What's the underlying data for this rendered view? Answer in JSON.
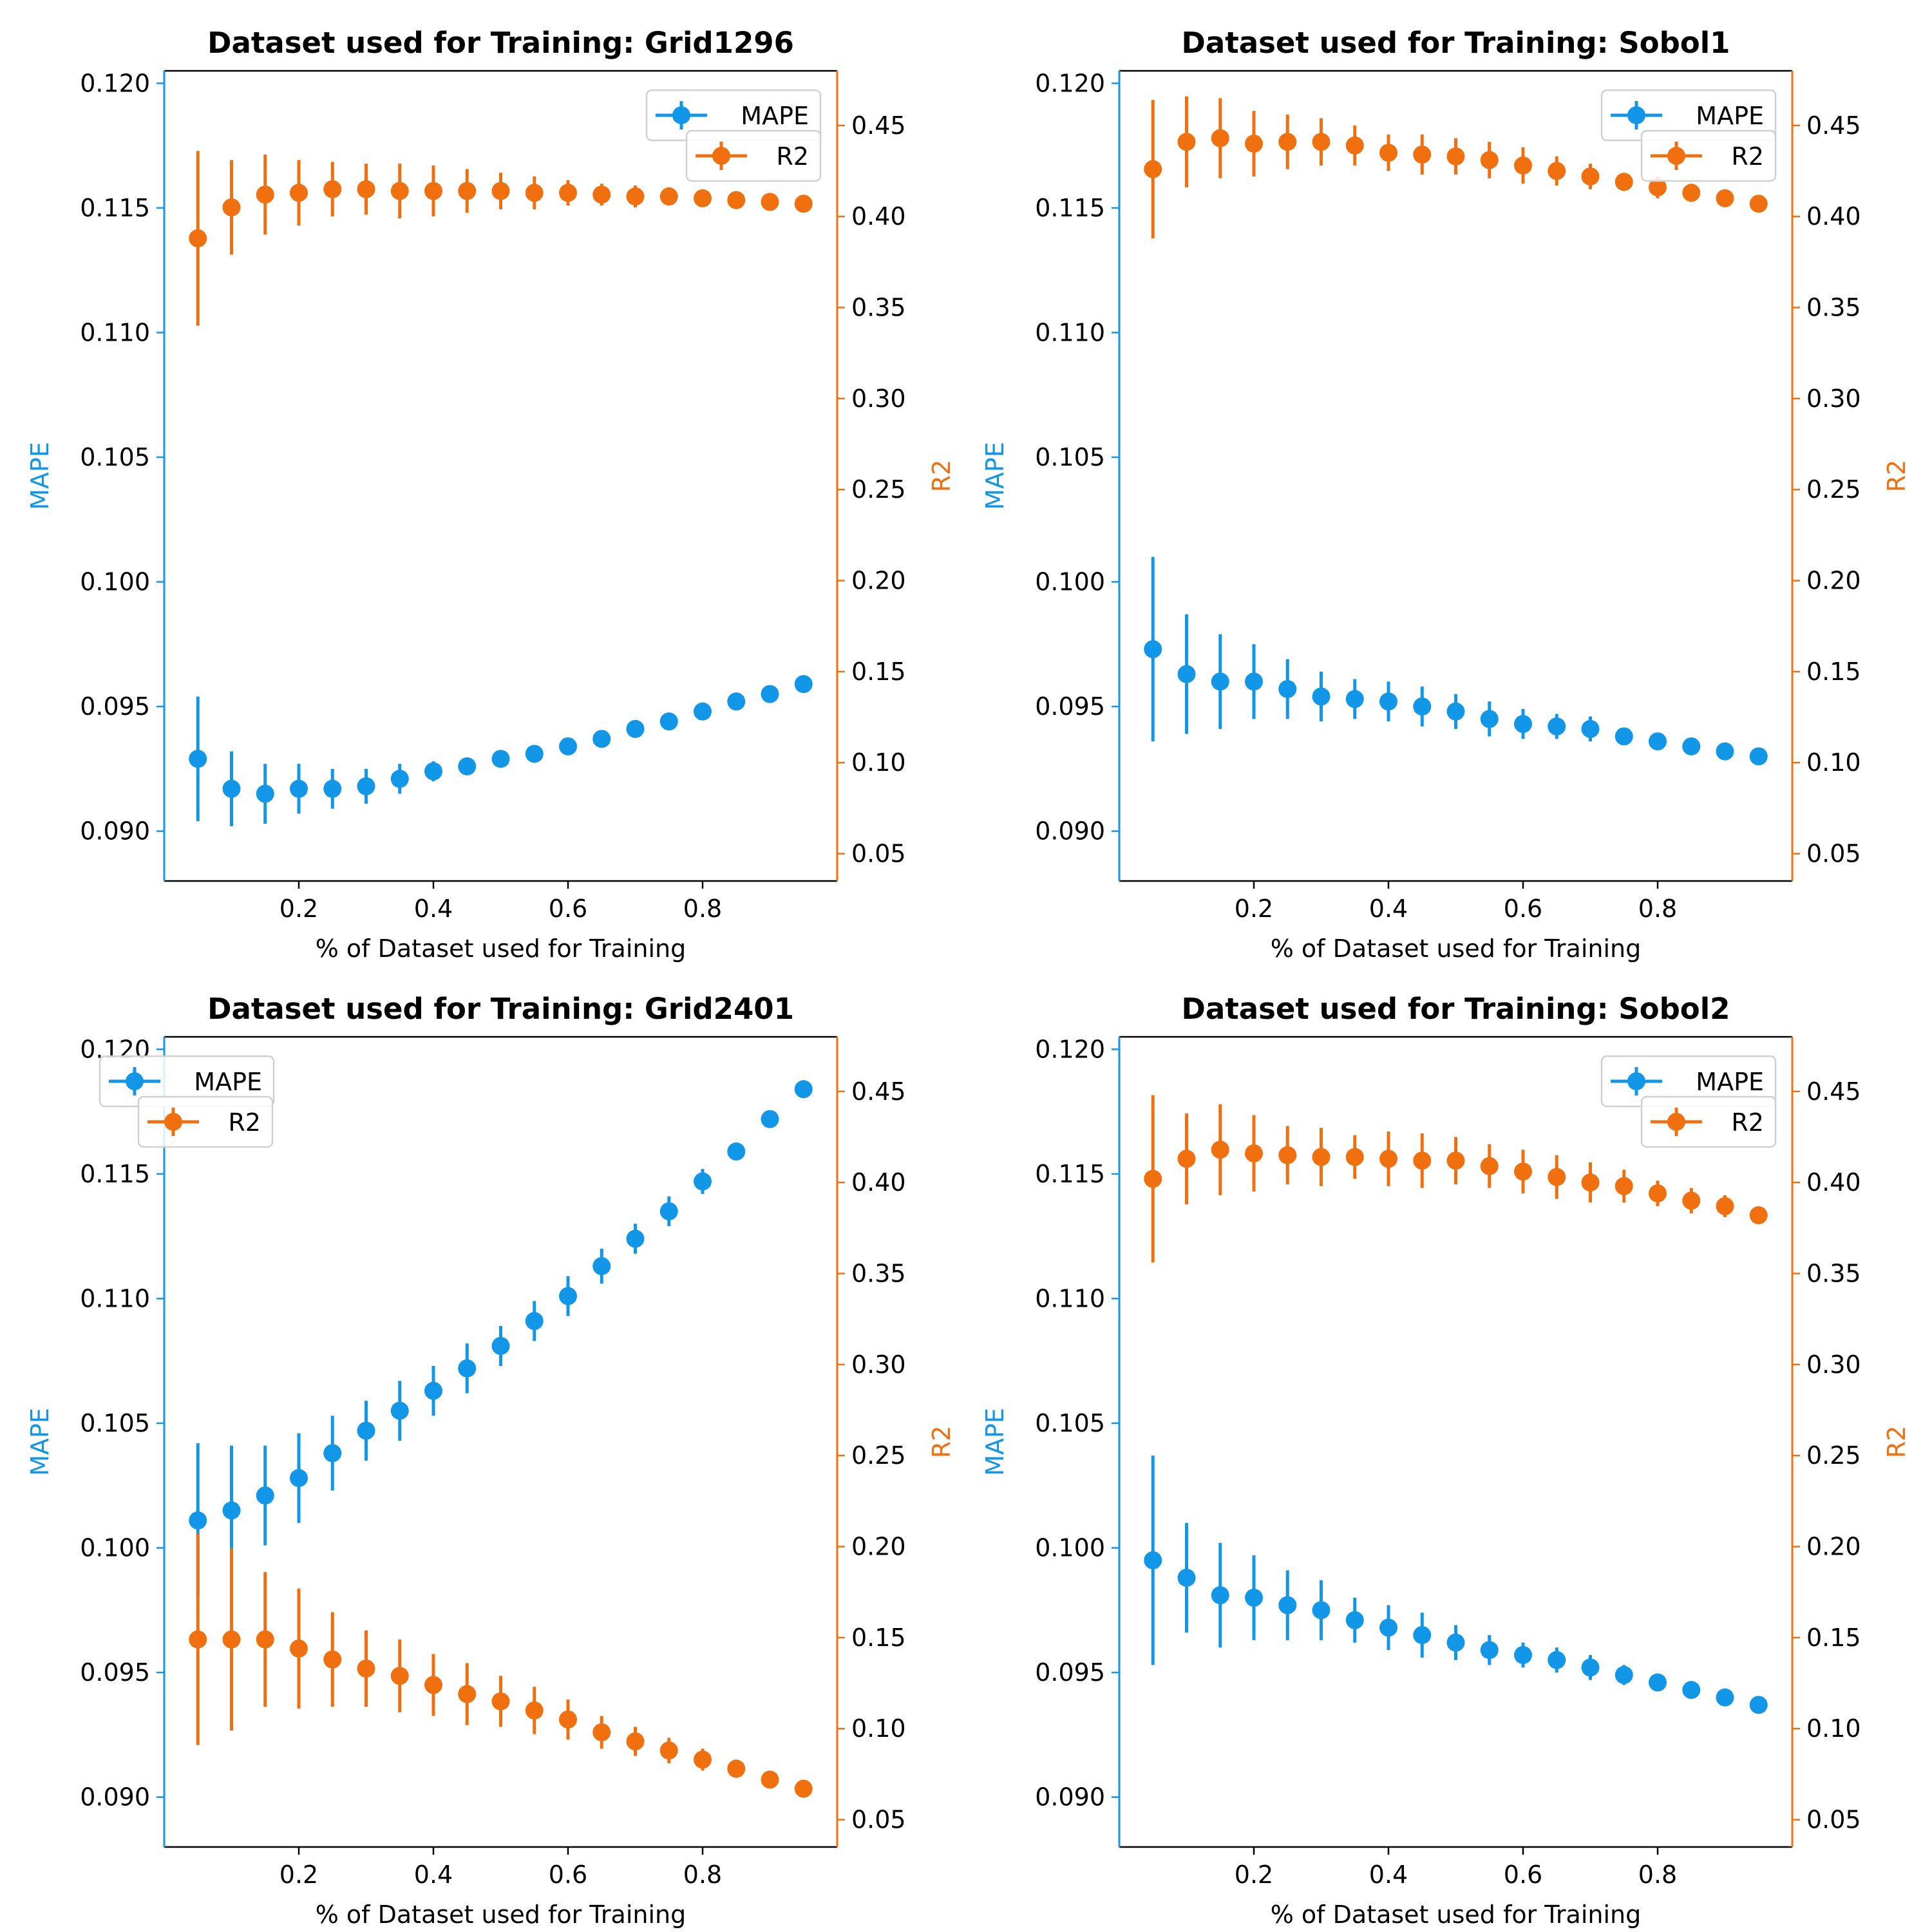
{
  "colors": {
    "mape": "#1296e8",
    "r2": "#f07010",
    "axis": "#000000"
  },
  "chart_data": [
    {
      "type": "scatter",
      "title": "Dataset used for Training: Grid1296",
      "xlabel": "% of Dataset used for Training",
      "ylabel_left": "MAPE",
      "ylabel_right": "R2",
      "xlim": [
        0.0,
        1.0
      ],
      "ylim_left": [
        0.088,
        0.1205
      ],
      "ylim_right": [
        0.035,
        0.48
      ],
      "xticks": [
        "0.2",
        "0.4",
        "0.6",
        "0.8"
      ],
      "yticks_left": [
        "0.090",
        "0.095",
        "0.100",
        "0.105",
        "0.110",
        "0.115",
        "0.120"
      ],
      "yticks_right": [
        "0.05",
        "0.10",
        "0.15",
        "0.20",
        "0.25",
        "0.30",
        "0.35",
        "0.40",
        "0.45"
      ],
      "legend_position": "upper right",
      "x": [
        0.05,
        0.1,
        0.15,
        0.2,
        0.25,
        0.3,
        0.35,
        0.4,
        0.45,
        0.5,
        0.55,
        0.6,
        0.65,
        0.7,
        0.75,
        0.8,
        0.85,
        0.9,
        0.95
      ],
      "series": [
        {
          "name": "MAPE",
          "axis": "left",
          "values": [
            0.0929,
            0.0917,
            0.0915,
            0.0917,
            0.0917,
            0.0918,
            0.0921,
            0.0924,
            0.0926,
            0.0929,
            0.0931,
            0.0934,
            0.0937,
            0.0941,
            0.0944,
            0.0948,
            0.0952,
            0.0955,
            0.0959
          ],
          "errors": [
            0.0025,
            0.0015,
            0.0012,
            0.001,
            0.0008,
            0.0007,
            0.0006,
            0.0004,
            0.0003,
            0.0002,
            0.0002,
            0.0002,
            0.0002,
            0.0002,
            0.0002,
            0.0002,
            0.0002,
            0.0002,
            0.0002
          ]
        },
        {
          "name": "R2",
          "axis": "right",
          "values": [
            0.388,
            0.405,
            0.412,
            0.413,
            0.415,
            0.415,
            0.414,
            0.414,
            0.414,
            0.414,
            0.413,
            0.413,
            0.412,
            0.411,
            0.411,
            0.41,
            0.409,
            0.408,
            0.407
          ],
          "errors": [
            0.048,
            0.026,
            0.022,
            0.018,
            0.015,
            0.014,
            0.015,
            0.014,
            0.012,
            0.01,
            0.009,
            0.007,
            0.006,
            0.006,
            0.005,
            0.004,
            0.003,
            0.003,
            0.003
          ]
        }
      ]
    },
    {
      "type": "scatter",
      "title": "Dataset used for Training: Sobol1",
      "xlabel": "% of Dataset used for Training",
      "ylabel_left": "MAPE",
      "ylabel_right": "R2",
      "xlim": [
        0.0,
        1.0
      ],
      "ylim_left": [
        0.088,
        0.1205
      ],
      "ylim_right": [
        0.035,
        0.48
      ],
      "xticks": [
        "0.2",
        "0.4",
        "0.6",
        "0.8"
      ],
      "yticks_left": [
        "0.090",
        "0.095",
        "0.100",
        "0.105",
        "0.110",
        "0.115",
        "0.120"
      ],
      "yticks_right": [
        "0.05",
        "0.10",
        "0.15",
        "0.20",
        "0.25",
        "0.30",
        "0.35",
        "0.40",
        "0.45"
      ],
      "legend_position": "upper right",
      "x": [
        0.05,
        0.1,
        0.15,
        0.2,
        0.25,
        0.3,
        0.35,
        0.4,
        0.45,
        0.5,
        0.55,
        0.6,
        0.65,
        0.7,
        0.75,
        0.8,
        0.85,
        0.9,
        0.95
      ],
      "series": [
        {
          "name": "MAPE",
          "axis": "left",
          "values": [
            0.0973,
            0.0963,
            0.096,
            0.096,
            0.0957,
            0.0954,
            0.0953,
            0.0952,
            0.095,
            0.0948,
            0.0945,
            0.0943,
            0.0942,
            0.0941,
            0.0938,
            0.0936,
            0.0934,
            0.0932,
            0.093
          ],
          "errors": [
            0.0037,
            0.0024,
            0.0019,
            0.0015,
            0.0012,
            0.001,
            0.0008,
            0.0008,
            0.0008,
            0.0007,
            0.0007,
            0.0006,
            0.0005,
            0.0005,
            0.0003,
            0.0003,
            0.0002,
            0.0002,
            0.0002
          ]
        },
        {
          "name": "R2",
          "axis": "right",
          "values": [
            0.426,
            0.441,
            0.443,
            0.44,
            0.441,
            0.441,
            0.439,
            0.435,
            0.434,
            0.433,
            0.431,
            0.428,
            0.425,
            0.422,
            0.419,
            0.416,
            0.413,
            0.41,
            0.407
          ],
          "errors": [
            0.038,
            0.025,
            0.022,
            0.018,
            0.015,
            0.013,
            0.011,
            0.01,
            0.011,
            0.01,
            0.01,
            0.01,
            0.008,
            0.007,
            0.005,
            0.006,
            0.005,
            0.003,
            0.003
          ]
        }
      ]
    },
    {
      "type": "scatter",
      "title": "Dataset used for Training: Grid2401",
      "xlabel": "% of Dataset used for Training",
      "ylabel_left": "MAPE",
      "ylabel_right": "R2",
      "xlim": [
        0.0,
        1.0
      ],
      "ylim_left": [
        0.088,
        0.1205
      ],
      "ylim_right": [
        0.035,
        0.48
      ],
      "xticks": [
        "0.2",
        "0.4",
        "0.6",
        "0.8"
      ],
      "yticks_left": [
        "0.090",
        "0.095",
        "0.100",
        "0.105",
        "0.110",
        "0.115",
        "0.120"
      ],
      "yticks_right": [
        "0.05",
        "0.10",
        "0.15",
        "0.20",
        "0.25",
        "0.30",
        "0.35",
        "0.40",
        "0.45"
      ],
      "legend_position": "upper left",
      "x": [
        0.05,
        0.1,
        0.15,
        0.2,
        0.25,
        0.3,
        0.35,
        0.4,
        0.45,
        0.5,
        0.55,
        0.6,
        0.65,
        0.7,
        0.75,
        0.8,
        0.85,
        0.9,
        0.95
      ],
      "series": [
        {
          "name": "MAPE",
          "axis": "left",
          "values": [
            0.1011,
            0.1015,
            0.1021,
            0.1028,
            0.1038,
            0.1047,
            0.1055,
            0.1063,
            0.1072,
            0.1081,
            0.1091,
            0.1101,
            0.1113,
            0.1124,
            0.1135,
            0.1147,
            0.1159,
            0.1172,
            0.1184
          ],
          "errors": [
            0.0031,
            0.0026,
            0.002,
            0.0018,
            0.0015,
            0.0012,
            0.0012,
            0.001,
            0.001,
            0.0008,
            0.0008,
            0.0008,
            0.0007,
            0.0006,
            0.0006,
            0.0005,
            0.0003,
            0.0003,
            0.0002
          ]
        },
        {
          "name": "R2",
          "axis": "right",
          "values": [
            0.149,
            0.149,
            0.149,
            0.144,
            0.138,
            0.133,
            0.129,
            0.124,
            0.119,
            0.115,
            0.11,
            0.105,
            0.098,
            0.093,
            0.088,
            0.083,
            0.078,
            0.072,
            0.067
          ],
          "errors": [
            0.058,
            0.05,
            0.037,
            0.033,
            0.026,
            0.021,
            0.02,
            0.017,
            0.017,
            0.014,
            0.013,
            0.011,
            0.009,
            0.008,
            0.007,
            0.006,
            0.005,
            0.004,
            0.003
          ]
        }
      ]
    },
    {
      "type": "scatter",
      "title": "Dataset used for Training: Sobol2",
      "xlabel": "% of Dataset used for Training",
      "ylabel_left": "MAPE",
      "ylabel_right": "R2",
      "xlim": [
        0.0,
        1.0
      ],
      "ylim_left": [
        0.088,
        0.1205
      ],
      "ylim_right": [
        0.035,
        0.48
      ],
      "xticks": [
        "0.2",
        "0.4",
        "0.6",
        "0.8"
      ],
      "yticks_left": [
        "0.090",
        "0.095",
        "0.100",
        "0.105",
        "0.110",
        "0.115",
        "0.120"
      ],
      "yticks_right": [
        "0.05",
        "0.10",
        "0.15",
        "0.20",
        "0.25",
        "0.30",
        "0.35",
        "0.40",
        "0.45"
      ],
      "legend_position": "upper right",
      "x": [
        0.05,
        0.1,
        0.15,
        0.2,
        0.25,
        0.3,
        0.35,
        0.4,
        0.45,
        0.5,
        0.55,
        0.6,
        0.65,
        0.7,
        0.75,
        0.8,
        0.85,
        0.9,
        0.95
      ],
      "series": [
        {
          "name": "MAPE",
          "axis": "left",
          "values": [
            0.0995,
            0.0988,
            0.0981,
            0.098,
            0.0977,
            0.0975,
            0.0971,
            0.0968,
            0.0965,
            0.0962,
            0.0959,
            0.0957,
            0.0955,
            0.0952,
            0.0949,
            0.0946,
            0.0943,
            0.094,
            0.0937
          ],
          "errors": [
            0.0042,
            0.0022,
            0.0021,
            0.0017,
            0.0014,
            0.0012,
            0.0009,
            0.0009,
            0.0009,
            0.0007,
            0.0006,
            0.0005,
            0.0005,
            0.0005,
            0.0004,
            0.0003,
            0.0002,
            0.0002,
            0.0002
          ]
        },
        {
          "name": "R2",
          "axis": "right",
          "values": [
            0.402,
            0.413,
            0.418,
            0.416,
            0.415,
            0.414,
            0.414,
            0.413,
            0.412,
            0.412,
            0.409,
            0.406,
            0.403,
            0.4,
            0.398,
            0.394,
            0.39,
            0.387,
            0.382
          ],
          "errors": [
            0.046,
            0.025,
            0.025,
            0.021,
            0.016,
            0.016,
            0.012,
            0.015,
            0.015,
            0.013,
            0.012,
            0.012,
            0.012,
            0.011,
            0.009,
            0.007,
            0.007,
            0.006,
            0.004
          ]
        }
      ]
    }
  ]
}
